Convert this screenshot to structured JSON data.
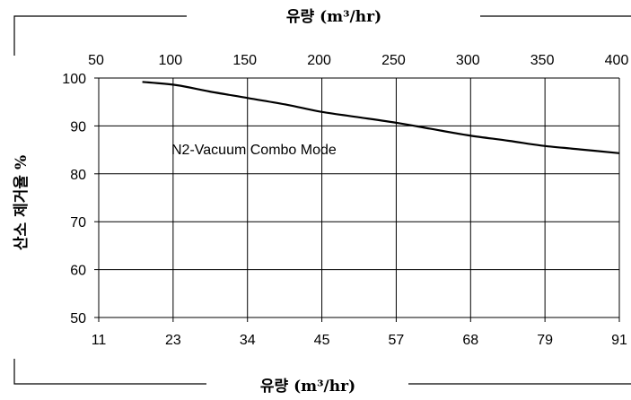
{
  "chart_data": {
    "type": "line",
    "title": "",
    "xlabel_bottom": "유량 (m³/hr)",
    "xlabel_top": "유량 (m³/hr)",
    "ylabel": "산소 제거율 %",
    "annotation": "N2-Vacuum Combo Mode",
    "xlim": [
      11,
      91
    ],
    "ylim": [
      50,
      100
    ],
    "x_ticks_bottom": [
      "11",
      "23",
      "34",
      "45",
      "57",
      "68",
      "79",
      "91"
    ],
    "x_ticks_top": [
      "50",
      "100",
      "150",
      "200",
      "250",
      "300",
      "350",
      "400"
    ],
    "y_ticks": [
      "50",
      "60",
      "70",
      "80",
      "90",
      "100"
    ],
    "grid": true,
    "series": [
      {
        "x": [
          17.7,
          23,
          28,
          34,
          40,
          45,
          51,
          57,
          62,
          68,
          74,
          79,
          85,
          91
        ],
        "y": [
          99.2,
          98.5,
          97.2,
          95.8,
          94.4,
          93.0,
          91.8,
          90.6,
          89.4,
          88.0,
          86.9,
          85.9,
          85.1,
          84.3
        ]
      }
    ],
    "line_color": "#000000"
  }
}
